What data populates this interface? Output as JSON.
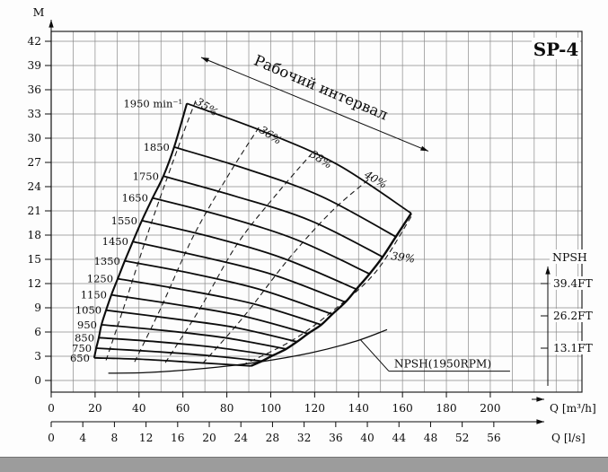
{
  "chart_data": {
    "type": "line",
    "title": "SP-4",
    "y_axis": {
      "label": "M",
      "min": 0,
      "max": 42,
      "step": 3
    },
    "x_axis_m3h": {
      "label": "Q [m³/h]",
      "min": 0,
      "max": 200,
      "step": 20
    },
    "x_axis_ls": {
      "label": "Q [l/s]",
      "min": 0,
      "max": 56,
      "step": 4
    },
    "npsh_axis": {
      "label": "NPSH",
      "ticks": [
        {
          "label": "39.4FT",
          "m": 12
        },
        {
          "label": "26.2FT",
          "m": 8
        },
        {
          "label": "13.1FT",
          "m": 4
        }
      ]
    },
    "working_interval": {
      "label": "Рабочий интервал",
      "from": [
        68.3,
        40.0
      ],
      "to": [
        171.8,
        28.4
      ],
      "label_pos": [
        122,
        35.7
      ],
      "angle": 23
    },
    "speed_curves": [
      {
        "label": "1950 min⁻¹",
        "points": [
          [
            61.8,
            34.3
          ],
          [
            96,
            30.9
          ],
          [
            130,
            26.8
          ],
          [
            164,
            20.7
          ]
        ]
      },
      {
        "label": "1850",
        "points": [
          [
            56.0,
            28.9
          ],
          [
            90,
            26.1
          ],
          [
            123,
            22.8
          ],
          [
            157,
            17.8
          ]
        ]
      },
      {
        "label": "1750",
        "points": [
          [
            51.1,
            25.3
          ],
          [
            84,
            22.8
          ],
          [
            118,
            19.8
          ],
          [
            151,
            15.3
          ]
        ]
      },
      {
        "label": "1650",
        "points": [
          [
            46.2,
            22.6
          ],
          [
            79,
            20.3
          ],
          [
            112,
            17.4
          ],
          [
            145,
            13.2
          ]
        ]
      },
      {
        "label": "1550",
        "points": [
          [
            41.3,
            19.8
          ],
          [
            74,
            17.7
          ],
          [
            106,
            15.1
          ],
          [
            139,
            11.3
          ]
        ]
      },
      {
        "label": "1450",
        "points": [
          [
            37.2,
            17.2
          ],
          [
            69,
            15.3
          ],
          [
            101,
            13.1
          ],
          [
            134,
            9.7
          ]
        ]
      },
      {
        "label": "1350",
        "points": [
          [
            33.5,
            14.8
          ],
          [
            65,
            13.2
          ],
          [
            96,
            11.2
          ],
          [
            128,
            8.2
          ]
        ]
      },
      {
        "label": "1250",
        "points": [
          [
            30.3,
            12.6
          ],
          [
            61,
            11.2
          ],
          [
            92,
            9.5
          ],
          [
            123,
            6.9
          ]
        ]
      },
      {
        "label": "1150",
        "points": [
          [
            27.4,
            10.6
          ],
          [
            57,
            9.4
          ],
          [
            87,
            8.0
          ],
          [
            117,
            5.8
          ]
        ]
      },
      {
        "label": "1050",
        "points": [
          [
            25.0,
            8.7
          ],
          [
            54,
            7.7
          ],
          [
            83,
            6.6
          ],
          [
            112,
            4.8
          ]
        ]
      },
      {
        "label": "950",
        "points": [
          [
            22.9,
            6.9
          ],
          [
            51,
            6.2
          ],
          [
            79,
            5.3
          ],
          [
            107,
            3.9
          ]
        ]
      },
      {
        "label": "850",
        "points": [
          [
            21.7,
            5.3
          ],
          [
            48,
            4.8
          ],
          [
            75,
            4.1
          ],
          [
            101,
            3.1
          ]
        ]
      },
      {
        "label": "750",
        "points": [
          [
            20.5,
            4.0
          ],
          [
            46,
            3.6
          ],
          [
            71,
            3.1
          ],
          [
            96,
            2.4
          ]
        ]
      },
      {
        "label": "650",
        "points": [
          [
            19.6,
            2.8
          ],
          [
            43,
            2.6
          ],
          [
            67,
            2.2
          ],
          [
            91,
            1.8
          ]
        ]
      }
    ],
    "efficiency_contours": [
      {
        "label": "35%",
        "points": [
          [
            25,
            2.5
          ],
          [
            33,
            9
          ],
          [
            45,
            19
          ],
          [
            58,
            29
          ],
          [
            66,
            34.8
          ]
        ],
        "label_pos": [
          70,
          33.5
        ],
        "label_angle": 33
      },
      {
        "label": "36%",
        "points": [
          [
            38,
            2.3
          ],
          [
            50,
            9
          ],
          [
            65,
            18
          ],
          [
            82,
            26
          ],
          [
            95,
            31.5
          ]
        ],
        "label_pos": [
          99,
          30
        ],
        "label_angle": 33
      },
      {
        "label": "38%",
        "points": [
          [
            52,
            2.2
          ],
          [
            68,
            9
          ],
          [
            85,
            17
          ],
          [
            104,
            23.5
          ],
          [
            120,
            28.5
          ]
        ],
        "label_pos": [
          122,
          27
        ],
        "label_angle": 33
      },
      {
        "label": "40%",
        "points": [
          [
            69,
            2.1
          ],
          [
            88,
            8
          ],
          [
            108,
            15
          ],
          [
            128,
            21
          ],
          [
            146,
            25.2
          ]
        ],
        "label_pos": [
          147,
          24.5
        ],
        "label_angle": 30
      },
      {
        "label": "39%",
        "points": [
          [
            87,
            1.9
          ],
          [
            110,
            5
          ],
          [
            130,
            9
          ],
          [
            148,
            13.5
          ],
          [
            164,
            20.3
          ]
        ],
        "label_pos": [
          160,
          14.8
        ],
        "label_angle": 8
      }
    ],
    "npsh_curve": {
      "label": "NPSH(1950RPM)",
      "points": [
        [
          26,
          0.9
        ],
        [
          45,
          1.0
        ],
        [
          70,
          1.5
        ],
        [
          95,
          2.3
        ],
        [
          118,
          3.4
        ],
        [
          138,
          4.8
        ],
        [
          153,
          6.3
        ]
      ],
      "label_pos": [
        155,
        1.6
      ],
      "leader_from": [
        141,
        5.0
      ],
      "underline_to_q": 209
    }
  }
}
